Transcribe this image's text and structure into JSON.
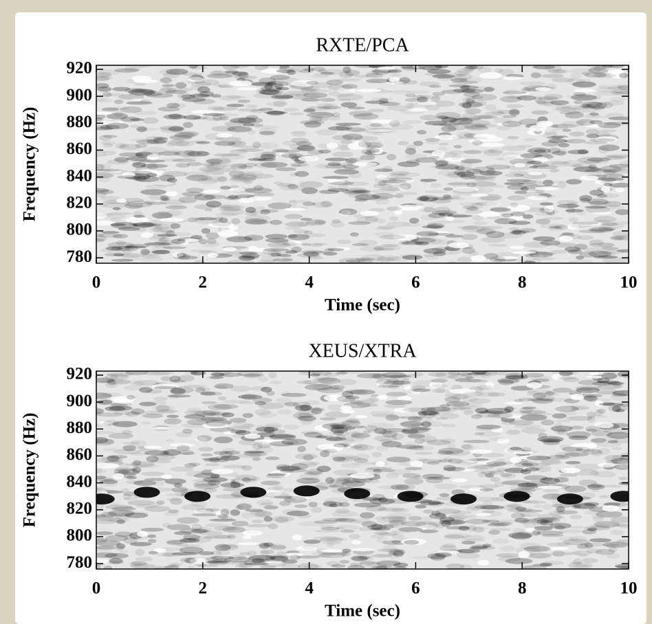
{
  "chart_data": [
    {
      "type": "spectrogram",
      "title": "RXTE/PCA",
      "xlabel": "Time (sec)",
      "ylabel": "Frequency (Hz)",
      "xlim": [
        0,
        10
      ],
      "ylim": [
        776,
        923
      ],
      "xticks": [
        0,
        2,
        4,
        6,
        8,
        10
      ],
      "yticks": [
        780,
        800,
        820,
        840,
        860,
        880,
        900,
        920
      ]
    },
    {
      "type": "spectrogram",
      "title": "XEUS/XTRA",
      "xlabel": "Time (sec)",
      "ylabel": "Frequency (Hz)",
      "xlim": [
        0,
        10
      ],
      "ylim": [
        776,
        923
      ],
      "xticks": [
        0,
        2,
        4,
        6,
        8,
        10
      ],
      "yticks": [
        780,
        800,
        820,
        840,
        860,
        880,
        900,
        920
      ],
      "series": [
        {
          "color": "#000000",
          "x": [
            0.1,
            0.95,
            1.9,
            2.95,
            3.95,
            4.9,
            5.9,
            6.9,
            7.9,
            8.9,
            9.9
          ],
          "values": [
            828,
            833,
            830,
            833,
            834,
            832,
            830,
            828,
            830,
            828,
            830
          ]
        }
      ]
    }
  ]
}
